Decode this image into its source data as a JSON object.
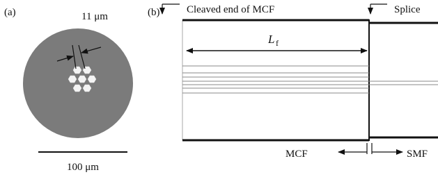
{
  "panel_a": {
    "label": "(a)",
    "core_pitch_label": "11 μm",
    "scale_bar_label": "100 μm"
  },
  "panel_b": {
    "label": "(b)",
    "cleaved_label": "Cleaved end of MCF",
    "splice_label": "Splice",
    "length_symbol": "L",
    "length_subscript": "f",
    "mcf_label": "MCF",
    "smf_label": "SMF"
  }
}
